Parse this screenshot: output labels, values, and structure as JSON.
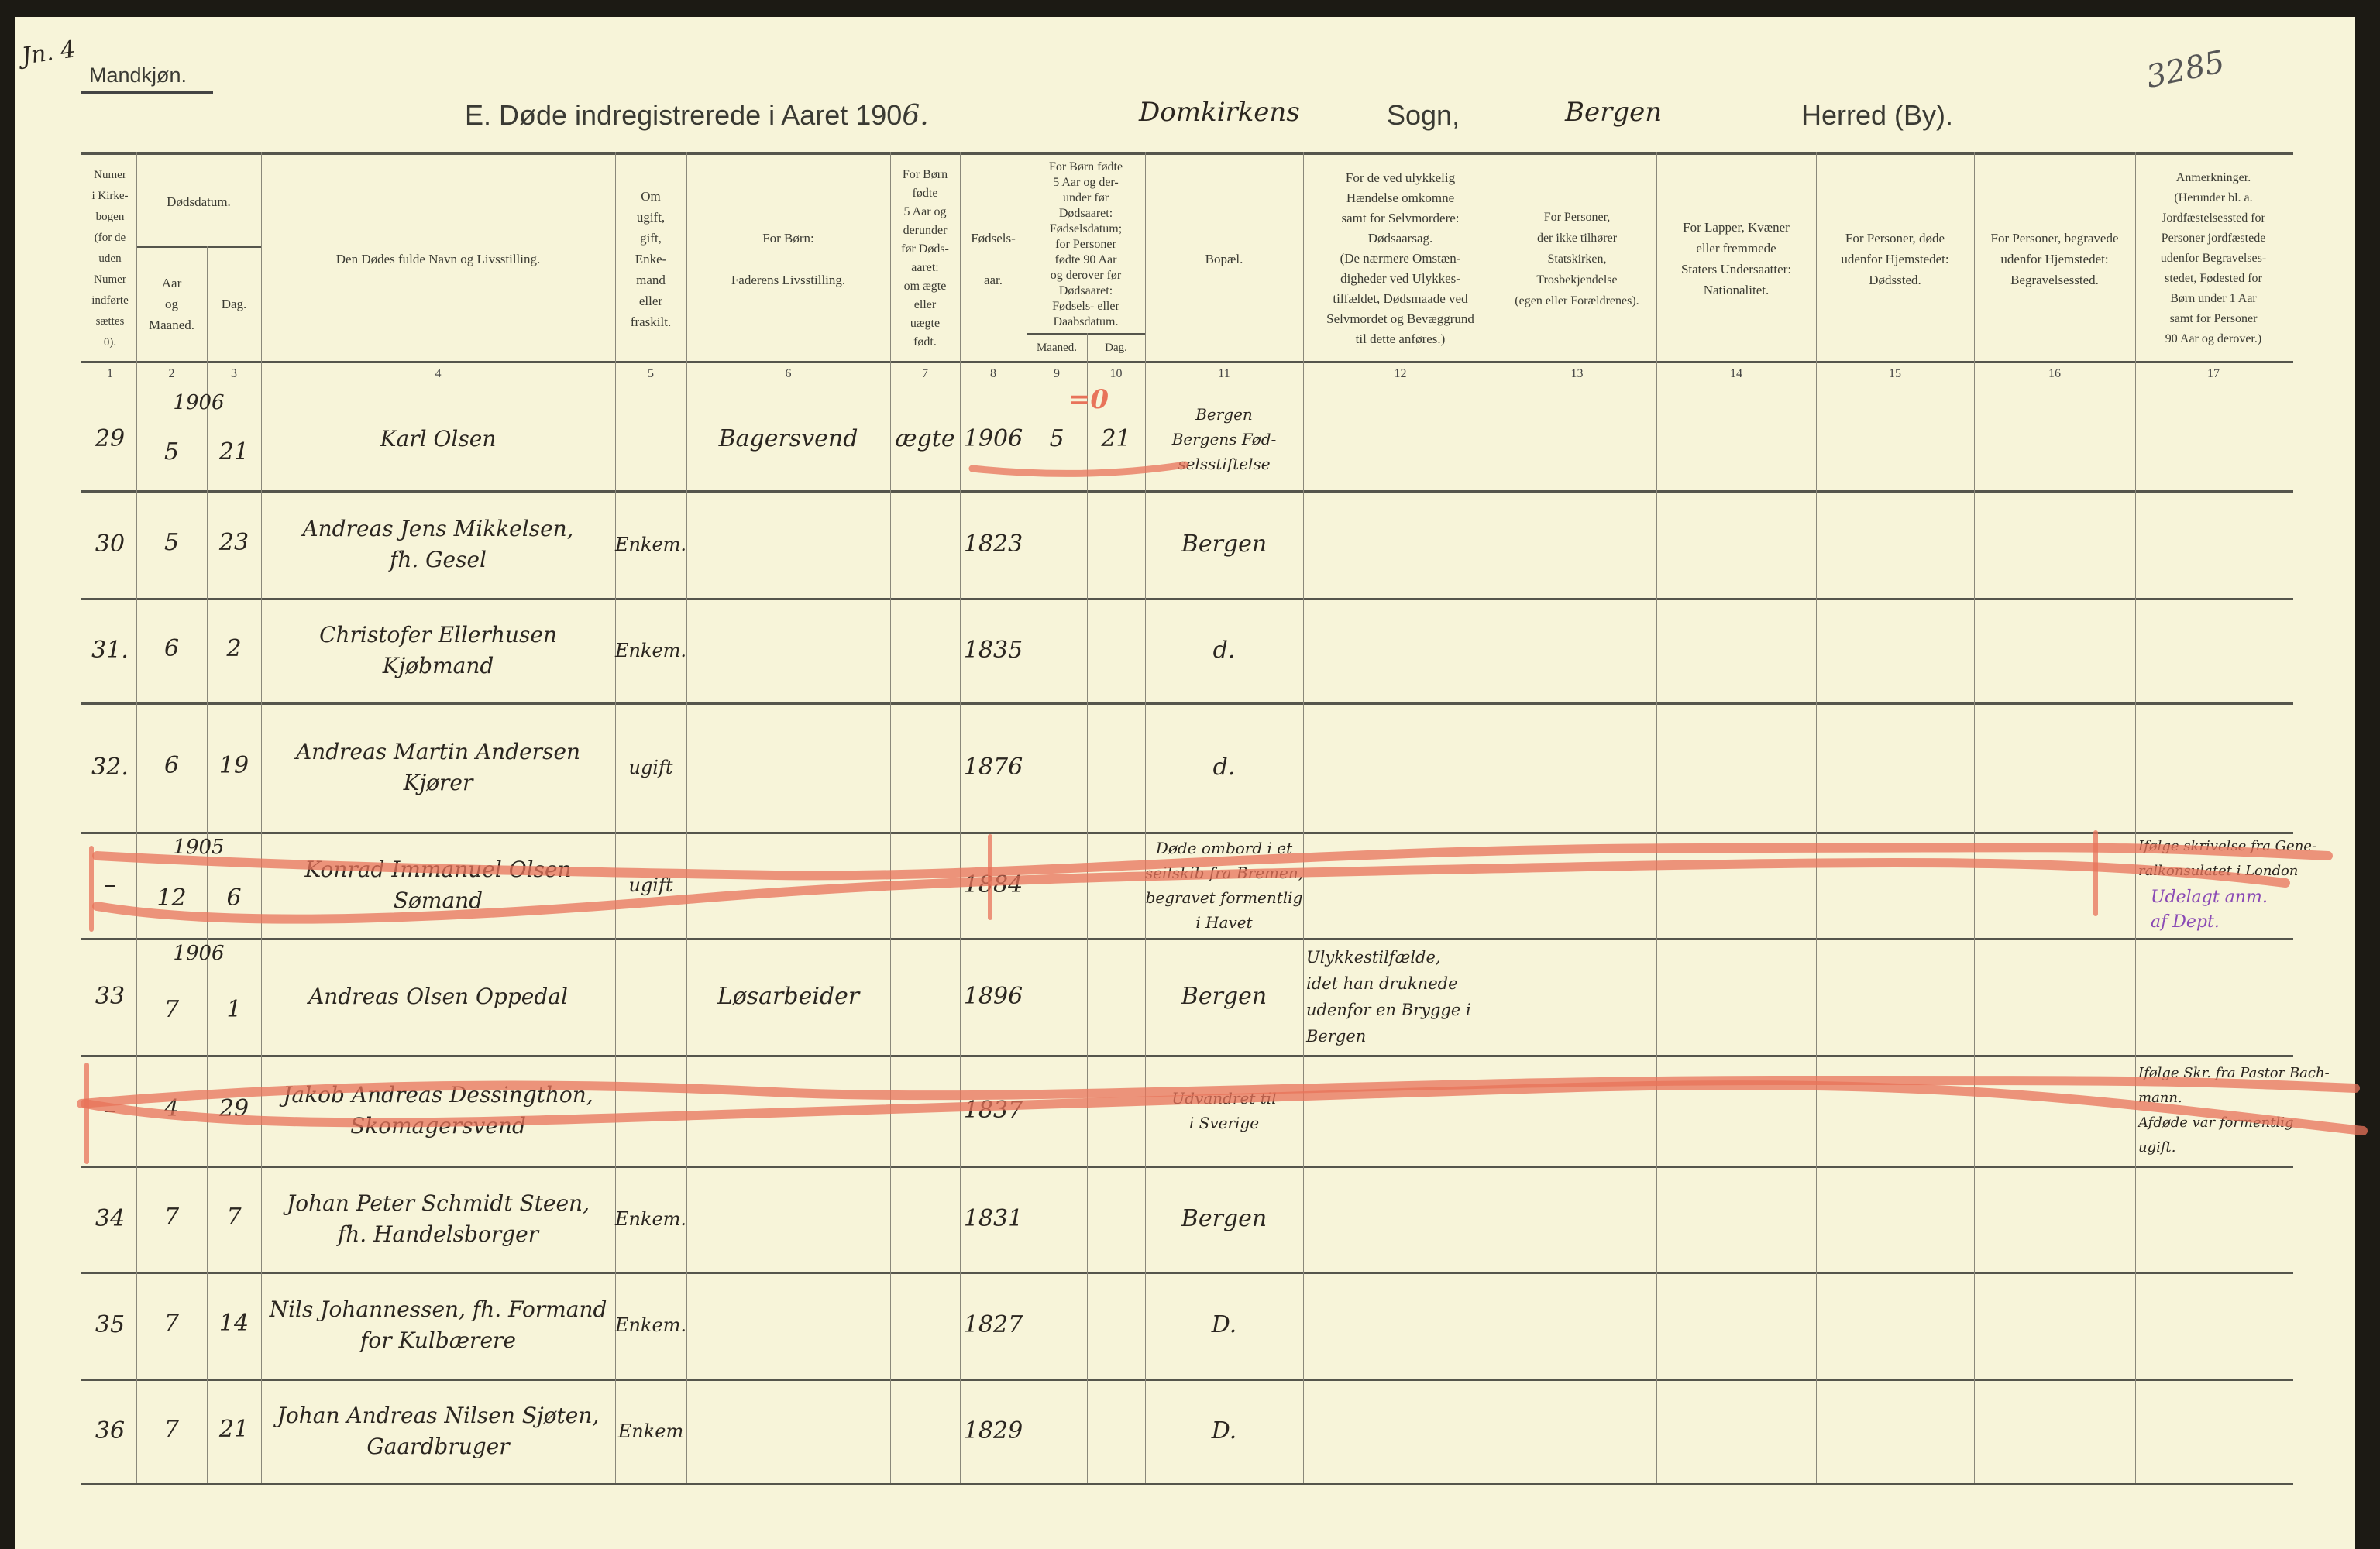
{
  "page": {
    "ref_mark": "Jn. 4",
    "sheet_number": "3285",
    "section": "Mandkjøn.",
    "title_print": "E.  Døde indregistrerede i Aaret 190",
    "title_year_hand": "6.",
    "parish_hand": "Domkirkens",
    "parish_label": "Sogn,",
    "district_hand": "Bergen",
    "district_label": "Herred (By)."
  },
  "headers": {
    "c1": "Numer\ni Kirke-\nbogen\n(for de\nuden\nNumer\nindførte\nsættes\n0).",
    "c23_top": "Dødsdatum.",
    "c2": "Aar\nog\nMaaned.",
    "c3": "Dag.",
    "c4": "Den Dødes fulde Navn og Livsstilling.",
    "c5": "Om\nugift,\ngift,\nEnke-\nmand\neller\nfraskilt.",
    "c6": "For Børn:\n\nFaderens Livsstilling.",
    "c7": "For Børn\nfødte\n5 Aar og\nderunder\nfør Døds-\naaret:\nom ægte\neller\nuægte\nfødt.",
    "c8": "Fødsels-\n\naar.",
    "c910_top": "For Børn fødte\n5 Aar og der-\nunder før\nDødsaaret:\nFødselsdatum;\nfor Personer\nfødte 90 Aar\nog derover før\nDødsaaret:\nFødsels- eller\nDaabsdatum.",
    "c9": "Maaned.",
    "c10": "Dag.",
    "c11": "Bopæl.",
    "c12": "For de ved ulykkelig\nHændelse omkomne\nsamt for Selvmordere:\nDødsaarsag.\n(De nærmere Omstæn-\ndigheder ved Ulykkes-\ntilfældet, Dødsmaade ved\nSelvmordet og Bevæggrund\ntil dette anføres.)",
    "c13": "For Personer,\nder ikke tilhører\nStatskirken,\nTrosbekjendelse\n(egen eller Forældrenes).",
    "c14": "For Lapper, Kvæner\neller fremmede\nStaters Undersaatter:\nNationalitet.",
    "c15": "For Personer, døde\nudenfor Hjemstedet:\nDødssted.",
    "c16": "For Personer, begravede\nudenfor Hjemstedet:\nBegravelsessted.",
    "c17": "Anmerkninger.\n(Herunder bl. a.\nJordfæstelsessted for\nPersoner jordfæstede\nudenfor Begravelses-\nstedet, Fødested for\nBørn under 1 Aar\nsamt for Personer\n90 Aar og derover.)"
  },
  "column_numbers": [
    "1",
    "2",
    "3",
    "4",
    "5",
    "6",
    "7",
    "8",
    "9",
    "10",
    "11",
    "12",
    "13",
    "14",
    "15",
    "16",
    "17"
  ],
  "rows": [
    {
      "nr": "29",
      "year": "1906",
      "month": "5",
      "day": "21",
      "name": "Karl Olsen",
      "civil": "",
      "father": "Bagersvend",
      "legit": "ægte",
      "birth_year": "1906",
      "b_month": "5",
      "b_day": "21",
      "residence": "Bergen\nBergens Fød-\nselsstiftelse",
      "cause": "",
      "remarks": "",
      "remarks_purple": "",
      "cancelled": false
    },
    {
      "nr": "30",
      "year": "",
      "month": "5",
      "day": "23",
      "name": "Andreas Jens Mikkelsen,\nfh. Gesel",
      "civil": "Enkem.",
      "father": "",
      "legit": "",
      "birth_year": "1823",
      "b_month": "",
      "b_day": "",
      "residence": "Bergen",
      "cause": "",
      "remarks": "",
      "remarks_purple": "",
      "cancelled": false
    },
    {
      "nr": "31.",
      "year": "",
      "month": "6",
      "day": "2",
      "name": "Christofer Ellerhusen\nKjøbmand",
      "civil": "Enkem.",
      "father": "",
      "legit": "",
      "birth_year": "1835",
      "b_month": "",
      "b_day": "",
      "residence": "d.",
      "cause": "",
      "remarks": "",
      "remarks_purple": "",
      "cancelled": false
    },
    {
      "nr": "32.",
      "year": "",
      "month": "6",
      "day": "19",
      "name": "Andreas Martin Andersen\nKjører",
      "civil": "ugift",
      "father": "",
      "legit": "",
      "birth_year": "1876",
      "b_month": "",
      "b_day": "",
      "residence": "d.",
      "cause": "",
      "remarks": "",
      "remarks_purple": "",
      "cancelled": false
    },
    {
      "nr": "–",
      "year": "1905",
      "month": "12",
      "day": "6",
      "name": "Konrad Immanuel Olsen\nSømand",
      "civil": "ugift",
      "father": "",
      "legit": "",
      "birth_year": "1884",
      "b_month": "",
      "b_day": "",
      "residence": "Døde ombord i et\nseilskib fra Bremen,\nbegravet formentlig\ni Havet",
      "cause": "",
      "remarks": "Ifølge skrivelse fra Gene-\nralkonsulatet i London",
      "remarks_purple": "Udelagt anm.\naf Dept.",
      "cancelled": true
    },
    {
      "nr": "33",
      "year": "1906",
      "month": "7",
      "day": "1",
      "name": "Andreas Olsen Oppedal",
      "civil": "",
      "father": "Løsarbeider",
      "legit": "",
      "birth_year": "1896",
      "b_month": "",
      "b_day": "",
      "residence": "Bergen",
      "cause": "Ulykkestilfælde,\nidet han druknede\nudenfor en Brygge i\nBergen",
      "remarks": "",
      "remarks_purple": "",
      "cancelled": false
    },
    {
      "nr": "–",
      "year": "",
      "month": "4",
      "day": "29",
      "name": "Jakob Andreas Dessingthon,\nSkomagersvend",
      "civil": "",
      "father": "",
      "legit": "",
      "birth_year": "1837",
      "b_month": "",
      "b_day": "",
      "residence": "Udvandret til\ni Sverige",
      "cause": "",
      "remarks": "Ifølge Skr. fra Pastor Bach-\nmann.\nAfdøde var formentlig\nugift.",
      "remarks_purple": "",
      "cancelled": true
    },
    {
      "nr": "34",
      "year": "",
      "month": "7",
      "day": "7",
      "name": "Johan Peter Schmidt Steen,\nfh. Handelsborger",
      "civil": "Enkem.",
      "father": "",
      "legit": "",
      "birth_year": "1831",
      "b_month": "",
      "b_day": "",
      "residence": "Bergen",
      "cause": "",
      "remarks": "",
      "remarks_purple": "",
      "cancelled": false
    },
    {
      "nr": "35",
      "year": "",
      "month": "7",
      "day": "14",
      "name": "Nils Johannessen, fh. Formand\nfor Kulbærere",
      "civil": "Enkem.",
      "father": "",
      "legit": "",
      "birth_year": "1827",
      "b_month": "",
      "b_day": "",
      "residence": "D.",
      "cause": "",
      "remarks": "",
      "remarks_purple": "",
      "cancelled": false
    },
    {
      "nr": "36",
      "year": "",
      "month": "7",
      "day": "21",
      "name": "Johan Andreas Nilsen Sjøten,\nGaardbruger",
      "civil": "Enkem",
      "father": "",
      "legit": "",
      "birth_year": "1829",
      "b_month": "",
      "b_day": "",
      "residence": "D.",
      "cause": "",
      "remarks": "",
      "remarks_purple": "",
      "cancelled": false
    }
  ],
  "correction_mark": "=0",
  "colors": {
    "paper": "#f7f4d9",
    "ink": "#2b2620",
    "red_pencil": "#e8735a",
    "purple_ink": "#8a4ab5"
  }
}
